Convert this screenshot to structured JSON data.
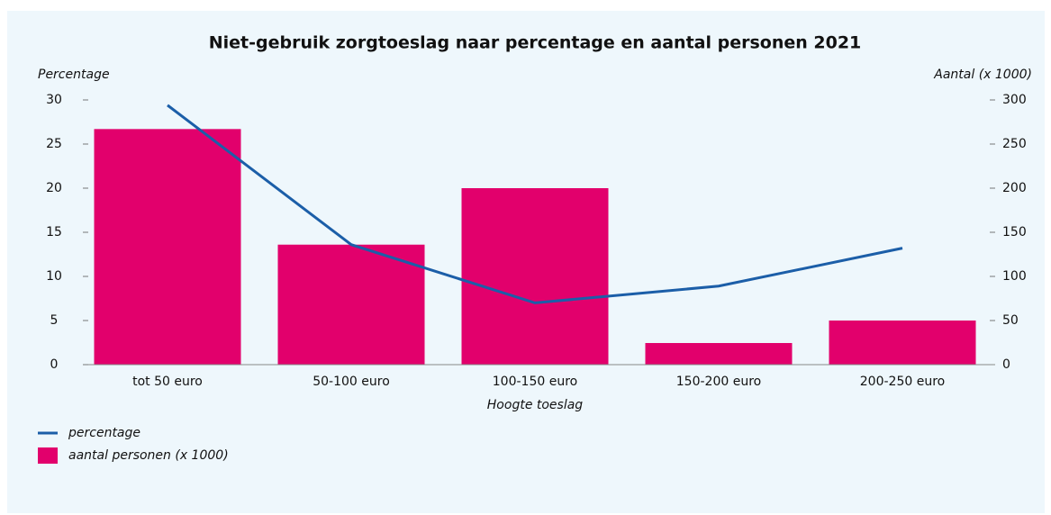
{
  "chart_data": {
    "type": "bar-line",
    "title": "Niet-gebruik zorgtoeslag naar percentage en aantal personen 2021",
    "ylabel": "Percentage",
    "y2label": "Aantal (x 1000)",
    "xlabel": "Hoogte toeslag",
    "categories": [
      "tot 50 euro",
      "50-100 euro",
      "100-150 euro",
      "150-200 euro",
      "200-250 euro"
    ],
    "series": [
      {
        "name": "percentage",
        "type": "line",
        "color": "#1b5ea8",
        "values": [
          29.4,
          13.6,
          7.0,
          8.9,
          13.2
        ]
      },
      {
        "name": "aantal personen (x 1000)",
        "type": "bar",
        "axis": "y2",
        "color": "#e2006c",
        "values": [
          267,
          136,
          200,
          24.5,
          50
        ]
      }
    ],
    "ylim": [
      0,
      30
    ],
    "yticks": [
      0,
      5,
      10,
      15,
      20,
      25,
      30
    ],
    "y2lim": [
      0,
      300
    ],
    "y2ticks": [
      0,
      50,
      100,
      150,
      200,
      250,
      300
    ],
    "legend": "bottom-left"
  }
}
